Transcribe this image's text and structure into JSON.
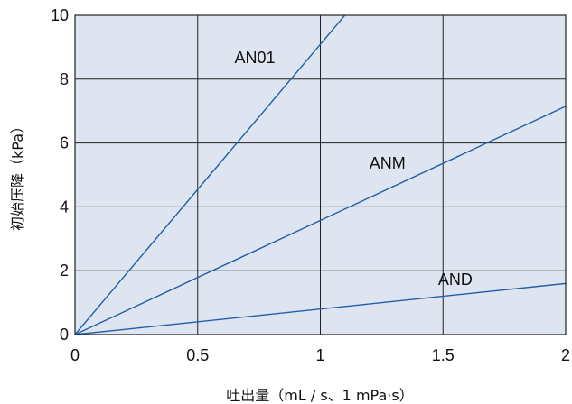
{
  "chart_data": {
    "type": "line",
    "title": "",
    "xlabel": "吐出量（mL / s、1 mPa·s）",
    "ylabel": "初始压降（kPa）",
    "xlim": [
      0,
      2
    ],
    "ylim": [
      0,
      10
    ],
    "x_ticks": [
      0,
      0.5,
      1,
      1.5,
      2
    ],
    "x_tick_labels": [
      "0",
      "0.5",
      "1",
      "1.5",
      "2"
    ],
    "y_ticks": [
      0,
      2,
      4,
      6,
      8,
      10
    ],
    "y_tick_labels": [
      "0",
      "2",
      "4",
      "6",
      "8",
      "10"
    ],
    "grid": true,
    "plot_background": "#dfe4f1",
    "grid_color": "#222222",
    "line_color": "#1f5fa8",
    "series": [
      {
        "name": "AN01",
        "x": [
          0,
          1.1
        ],
        "y": [
          0,
          10
        ]
      },
      {
        "name": "ANM",
        "x": [
          0,
          2
        ],
        "y": [
          0,
          7.15
        ]
      },
      {
        "name": "AND",
        "x": [
          0,
          2
        ],
        "y": [
          0,
          1.6
        ]
      }
    ],
    "series_label_positions": [
      {
        "name": "AN01",
        "x": 0.65,
        "y": 8.5
      },
      {
        "name": "ANM",
        "x": 1.2,
        "y": 5.2
      },
      {
        "name": "AND",
        "x": 1.48,
        "y": 1.55
      }
    ]
  }
}
